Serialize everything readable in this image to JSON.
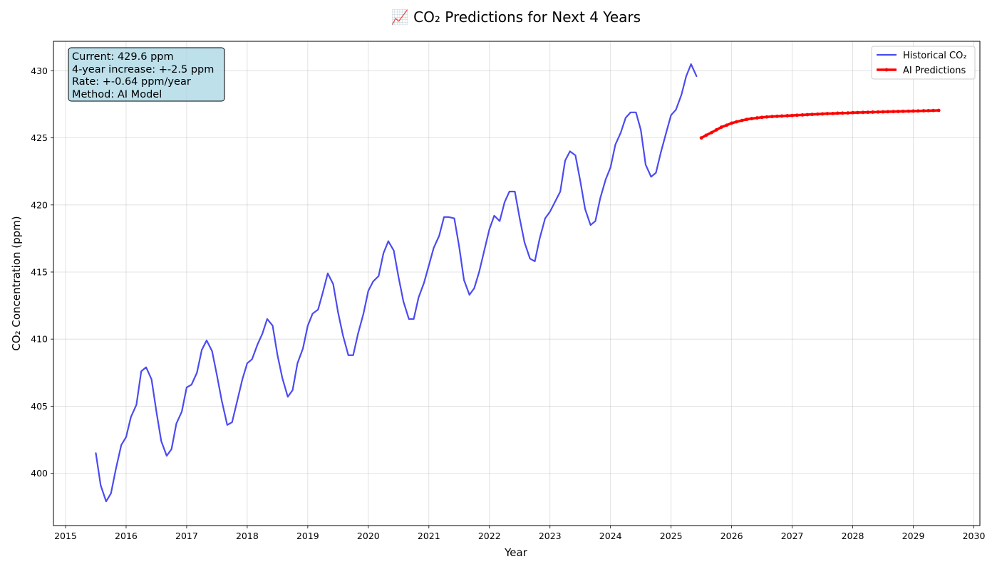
{
  "chart_data": {
    "type": "line",
    "title": "📈 CO₂ Predictions for Next 4 Years",
    "xlabel": "Year",
    "ylabel": "CO₂ Concentration (ppm)",
    "xlim": [
      2014.8,
      2030.1
    ],
    "ylim": [
      396.1,
      432.2
    ],
    "xticks": [
      2015,
      2016,
      2017,
      2018,
      2019,
      2020,
      2021,
      2022,
      2023,
      2024,
      2025,
      2026,
      2027,
      2028,
      2029,
      2030
    ],
    "yticks": [
      400,
      405,
      410,
      415,
      420,
      425,
      430
    ],
    "grid": true,
    "legend_position": "top-right",
    "info_box": {
      "lines": [
        "Current: 429.6 ppm",
        "4-year increase: +-2.5 ppm",
        "Rate: +-0.64 ppm/year",
        "Method: AI Model"
      ]
    },
    "series": [
      {
        "name": "Historical CO₂",
        "color": "#4b4bf0",
        "style": "line",
        "x": [
          2015.5,
          2015.58,
          2015.67,
          2015.75,
          2015.83,
          2015.92,
          2016.0,
          2016.08,
          2016.17,
          2016.25,
          2016.33,
          2016.42,
          2016.5,
          2016.58,
          2016.67,
          2016.75,
          2016.83,
          2016.92,
          2017.0,
          2017.08,
          2017.17,
          2017.25,
          2017.33,
          2017.42,
          2017.5,
          2017.58,
          2017.67,
          2017.75,
          2017.83,
          2017.92,
          2018.0,
          2018.08,
          2018.17,
          2018.25,
          2018.33,
          2018.42,
          2018.5,
          2018.58,
          2018.67,
          2018.75,
          2018.83,
          2018.92,
          2019.0,
          2019.08,
          2019.17,
          2019.25,
          2019.33,
          2019.42,
          2019.5,
          2019.58,
          2019.67,
          2019.75,
          2019.83,
          2019.92,
          2020.0,
          2020.08,
          2020.17,
          2020.25,
          2020.33,
          2020.42,
          2020.5,
          2020.58,
          2020.67,
          2020.75,
          2020.83,
          2020.92,
          2021.0,
          2021.08,
          2021.17,
          2021.25,
          2021.33,
          2021.42,
          2021.5,
          2021.58,
          2021.67,
          2021.75,
          2021.83,
          2021.92,
          2022.0,
          2022.08,
          2022.17,
          2022.25,
          2022.33,
          2022.42,
          2022.5,
          2022.58,
          2022.67,
          2022.75,
          2022.83,
          2022.92,
          2023.0,
          2023.08,
          2023.17,
          2023.25,
          2023.33,
          2023.42,
          2023.5,
          2023.58,
          2023.67,
          2023.75,
          2023.83,
          2023.92,
          2024.0,
          2024.08,
          2024.17,
          2024.25,
          2024.33,
          2024.42,
          2024.5,
          2024.58,
          2024.67,
          2024.75,
          2024.83,
          2024.92,
          2025.0,
          2025.08,
          2025.17,
          2025.25,
          2025.33,
          2025.42
        ],
        "y": [
          401.5,
          399.1,
          397.9,
          398.5,
          400.3,
          402.1,
          402.7,
          404.2,
          405.1,
          407.6,
          407.9,
          407.0,
          404.6,
          402.4,
          401.3,
          401.8,
          403.7,
          404.6,
          406.4,
          406.6,
          407.5,
          409.2,
          409.9,
          409.1,
          407.3,
          405.4,
          403.6,
          403.8,
          405.3,
          407.0,
          408.2,
          408.5,
          409.6,
          410.4,
          411.5,
          411.0,
          408.8,
          407.1,
          405.7,
          406.2,
          408.2,
          409.3,
          411.0,
          411.9,
          412.2,
          413.5,
          414.9,
          414.1,
          412.0,
          410.3,
          408.8,
          408.8,
          410.4,
          411.9,
          413.6,
          414.3,
          414.7,
          416.4,
          417.3,
          416.6,
          414.6,
          412.8,
          411.5,
          411.5,
          413.1,
          414.2,
          415.5,
          416.8,
          417.7,
          419.1,
          419.1,
          419.0,
          416.9,
          414.4,
          413.3,
          413.8,
          415.0,
          416.7,
          418.2,
          419.2,
          418.8,
          420.2,
          421.0,
          421.0,
          419.0,
          417.2,
          416.0,
          415.8,
          417.5,
          419.0,
          419.5,
          420.2,
          421.0,
          423.3,
          424.0,
          423.7,
          421.8,
          419.7,
          418.5,
          418.8,
          420.5,
          421.9,
          422.8,
          424.5,
          425.4,
          426.5,
          426.9,
          426.9,
          425.6,
          423.0,
          422.1,
          422.4,
          423.9,
          425.4,
          426.7,
          427.1,
          428.2,
          429.6,
          430.5,
          429.6
        ]
      },
      {
        "name": "AI Predictions",
        "color": "#ff0000",
        "style": "line-markers",
        "x": [
          2025.5,
          2025.58,
          2025.67,
          2025.75,
          2025.83,
          2025.92,
          2026.0,
          2026.08,
          2026.17,
          2026.25,
          2026.33,
          2026.42,
          2026.5,
          2026.58,
          2026.67,
          2026.75,
          2026.83,
          2026.92,
          2027.0,
          2027.08,
          2027.17,
          2027.25,
          2027.33,
          2027.42,
          2027.5,
          2027.58,
          2027.67,
          2027.75,
          2027.83,
          2027.92,
          2028.0,
          2028.08,
          2028.17,
          2028.25,
          2028.33,
          2028.42,
          2028.5,
          2028.58,
          2028.67,
          2028.75,
          2028.83,
          2028.92,
          2029.0,
          2029.08,
          2029.17,
          2029.25,
          2029.33,
          2029.42
        ],
        "y": [
          425.0,
          425.2,
          425.4,
          425.6,
          425.8,
          425.95,
          426.1,
          426.2,
          426.3,
          426.38,
          426.44,
          426.49,
          426.53,
          426.56,
          426.59,
          426.61,
          426.63,
          426.65,
          426.67,
          426.69,
          426.71,
          426.73,
          426.75,
          426.77,
          426.79,
          426.81,
          426.82,
          426.84,
          426.85,
          426.86,
          426.88,
          426.89,
          426.9,
          426.91,
          426.92,
          426.93,
          426.94,
          426.95,
          426.96,
          426.97,
          426.98,
          426.99,
          427.0,
          427.01,
          427.02,
          427.03,
          427.04,
          427.05
        ]
      }
    ]
  }
}
